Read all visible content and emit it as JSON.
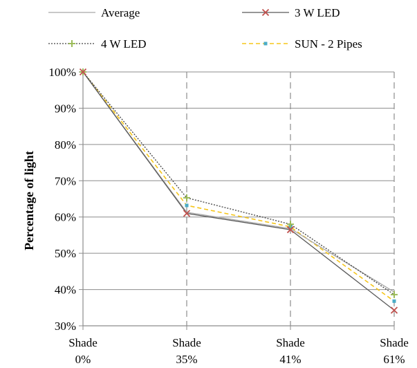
{
  "chart_data": {
    "type": "line",
    "title": "",
    "xlabel": "",
    "ylabel": "Percentage of light",
    "categories": [
      [
        "Shade",
        "0%"
      ],
      [
        "Shade",
        "35%"
      ],
      [
        "Shade",
        "41%"
      ],
      [
        "Shade",
        "61%"
      ]
    ],
    "y_ticks": [
      "30%",
      "40%",
      "50%",
      "60%",
      "70%",
      "80%",
      "90%",
      "100%"
    ],
    "ylim": [
      30,
      100
    ],
    "y_unit": "%",
    "grid": {
      "horizontal": true,
      "vertical": "dashed"
    },
    "legend_position": "top",
    "series": [
      {
        "name": "Average",
        "values": [
          100,
          61.3,
          56.8,
          39.3
        ],
        "color": "#a6a6a6",
        "style": "solid",
        "marker": "none"
      },
      {
        "name": "3 W LED",
        "values": [
          100,
          61.0,
          56.5,
          34.3
        ],
        "color": "#595959",
        "style": "solid",
        "marker": "x",
        "marker_color": "#c0504d"
      },
      {
        "name": "4 W LED",
        "values": [
          100,
          65.3,
          58.0,
          38.6
        ],
        "color": "#404040",
        "style": "dotted",
        "marker": "plus",
        "marker_color": "#9bbb59"
      },
      {
        "name": "SUN - 2 Pipes",
        "values": [
          100,
          63.2,
          57.3,
          36.8
        ],
        "color": "#f5c518",
        "style": "dashed",
        "marker": "square",
        "marker_color": "#4bacc6"
      }
    ]
  }
}
